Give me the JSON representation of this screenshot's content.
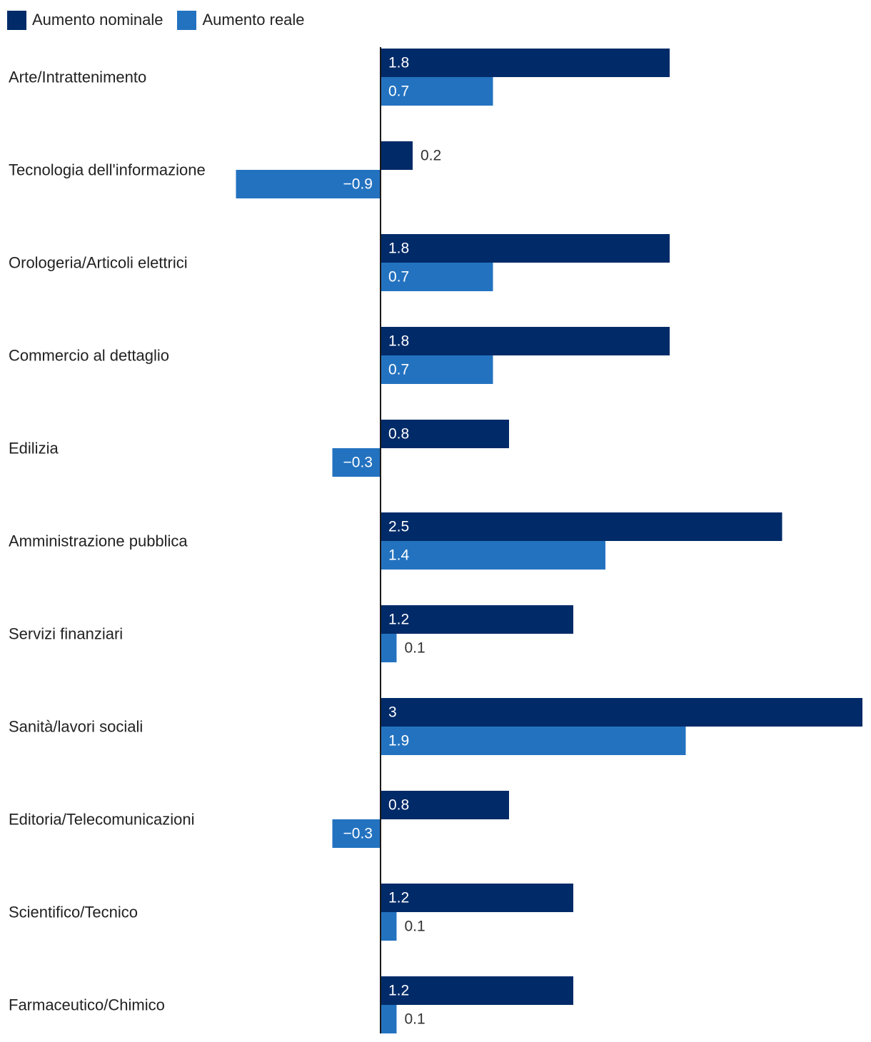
{
  "chart_data": {
    "type": "bar",
    "orientation": "horizontal",
    "title": "",
    "xlabel": "",
    "ylabel": "",
    "grid": false,
    "legend_position": "top-left",
    "xlim": [
      -0.9,
      3.0
    ],
    "categories": [
      "Arte/Intrattenimento",
      "Tecnologia dell'informazione",
      "Orologeria/Articoli elettrici",
      "Commercio al dettaglio",
      "Edilizia",
      "Amministrazione pubblica",
      "Servizi finanziari",
      "Sanità/lavori sociali",
      "Editoria/Telecomunicazioni",
      "Scientifico/Tecnico",
      "Farmaceutico/Chimico"
    ],
    "series": [
      {
        "name": "Aumento nominale",
        "color": "#002a68",
        "values": [
          1.8,
          0.2,
          1.8,
          1.8,
          0.8,
          2.5,
          1.2,
          3,
          0.8,
          1.2,
          1.2
        ],
        "labels": [
          "1.8",
          "0.2",
          "1.8",
          "1.8",
          "0.8",
          "2.5",
          "1.2",
          "3",
          "0.8",
          "1.2",
          "1.2"
        ]
      },
      {
        "name": "Aumento reale",
        "color": "#2372c0",
        "values": [
          0.7,
          -0.9,
          0.7,
          0.7,
          -0.3,
          1.4,
          0.1,
          1.9,
          -0.3,
          0.1,
          0.1
        ],
        "labels": [
          "0.7",
          "−0.9",
          "0.7",
          "0.7",
          "−0.3",
          "1.4",
          "0.1",
          "1.9",
          "−0.3",
          "0.1",
          "0.1"
        ]
      }
    ]
  }
}
